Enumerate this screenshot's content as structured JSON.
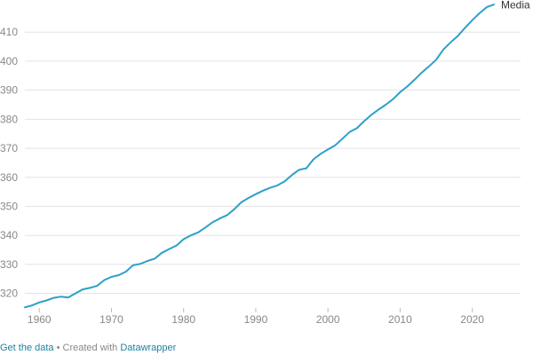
{
  "colors": {
    "line": "#2ca0c8",
    "grid": "#e3e3e3",
    "tick_text": "#888888",
    "series_label": "#333333",
    "link": "#1d81a2"
  },
  "chart_data": {
    "type": "line",
    "title": "",
    "xlabel": "",
    "ylabel": "",
    "xlim": [
      1958,
      2023
    ],
    "ylim": [
      315,
      420
    ],
    "grid": true,
    "x_ticks": [
      1960,
      1970,
      1980,
      1990,
      2000,
      2010,
      2020
    ],
    "y_ticks": [
      320,
      330,
      340,
      350,
      360,
      370,
      380,
      390,
      400,
      410
    ],
    "series": [
      {
        "name": "Media",
        "x": [
          1958,
          1959,
          1960,
          1961,
          1962,
          1963,
          1964,
          1965,
          1966,
          1967,
          1968,
          1969,
          1970,
          1971,
          1972,
          1973,
          1974,
          1975,
          1976,
          1977,
          1978,
          1979,
          1980,
          1981,
          1982,
          1983,
          1984,
          1985,
          1986,
          1987,
          1988,
          1989,
          1990,
          1991,
          1992,
          1993,
          1994,
          1995,
          1996,
          1997,
          1998,
          1999,
          2000,
          2001,
          2002,
          2003,
          2004,
          2005,
          2006,
          2007,
          2008,
          2009,
          2010,
          2011,
          2012,
          2013,
          2014,
          2015,
          2016,
          2017,
          2018,
          2019,
          2020,
          2021,
          2022,
          2023
        ],
        "values": [
          315.2,
          315.9,
          316.9,
          317.6,
          318.5,
          318.9,
          318.6,
          320.0,
          321.4,
          321.9,
          322.6,
          324.6,
          325.7,
          326.3,
          327.5,
          329.7,
          330.2,
          331.2,
          332.0,
          334.0,
          335.3,
          336.5,
          338.7,
          340.0,
          341.0,
          342.7,
          344.5,
          345.8,
          346.9,
          349.0,
          351.4,
          352.9,
          354.2,
          355.4,
          356.4,
          357.2,
          358.6,
          360.8,
          362.6,
          363.1,
          366.2,
          368.1,
          369.6,
          371.0,
          373.3,
          375.6,
          376.9,
          379.3,
          381.5,
          383.3,
          385.0,
          386.9,
          389.3,
          391.3,
          393.6,
          396.1,
          398.2,
          400.5,
          404.0,
          406.5,
          408.7,
          411.5,
          414.1,
          416.5,
          418.6,
          419.5
        ]
      }
    ]
  },
  "footer": {
    "get_data": "Get the data",
    "separator": " • Created with ",
    "created_with": "Datawrapper"
  }
}
